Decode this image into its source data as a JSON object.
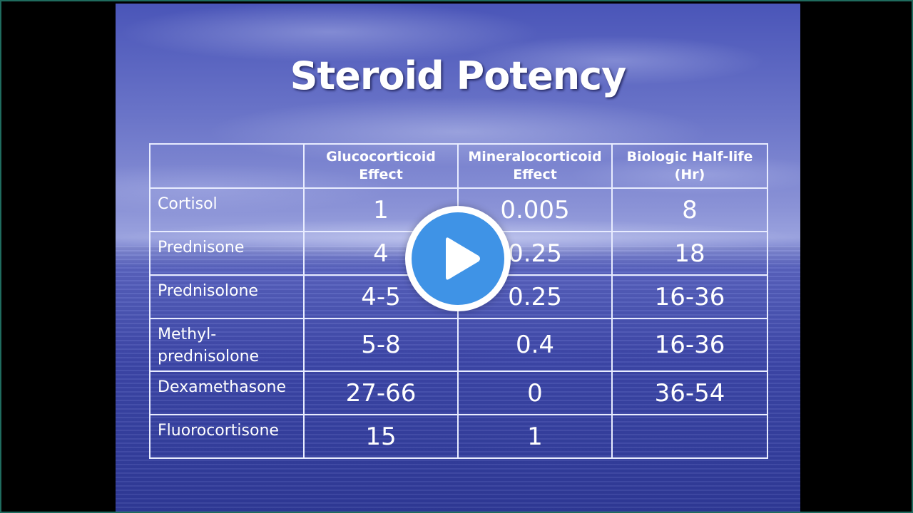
{
  "slide": {
    "title": "Steroid Potency"
  },
  "table": {
    "headers": [
      "",
      "Glucocorticoid\nEffect",
      "Mineralocorticoid\nEffect",
      "Biologic Half-life\n(Hr)"
    ],
    "rows": [
      {
        "drug": "Cortisol",
        "gluco": "1",
        "mineralo": "0.005",
        "halflife": "8"
      },
      {
        "drug": "Prednisone",
        "gluco": "4",
        "mineralo": "0.25",
        "halflife": "18"
      },
      {
        "drug": "Prednisolone",
        "gluco": "4-5",
        "mineralo": "0.25",
        "halflife": "16-36"
      },
      {
        "drug": "Methyl-\nprednisolone",
        "gluco": "5-8",
        "mineralo": "0.4",
        "halflife": "16-36"
      },
      {
        "drug": "Dexamethasone",
        "gluco": "27-66",
        "mineralo": "0",
        "halflife": "36-54"
      },
      {
        "drug": "Fluorocortisone",
        "gluco": "15",
        "mineralo": "1",
        "halflife": ""
      }
    ]
  },
  "overlay": {
    "play_icon": "play-icon",
    "accent_color": "#3f93e6"
  }
}
